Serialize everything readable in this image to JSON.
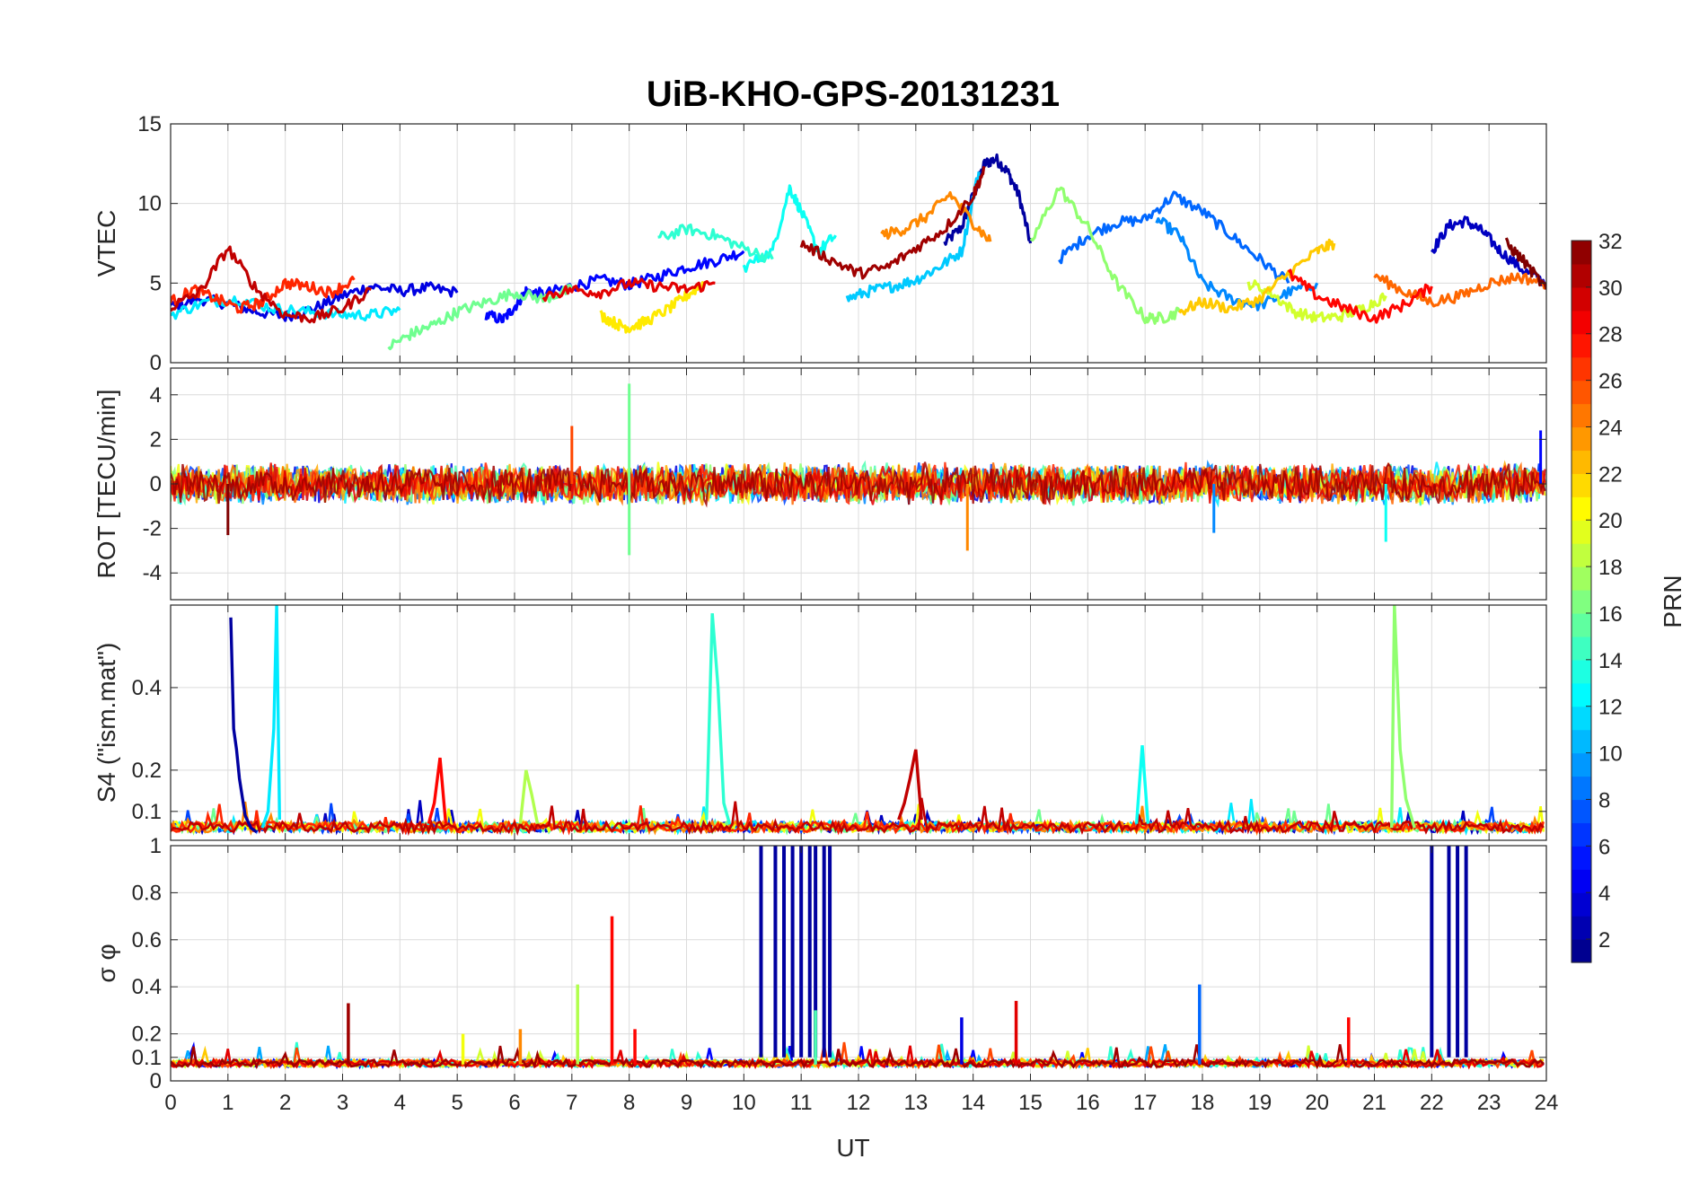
{
  "chart_data": {
    "type": "line",
    "title": "UiB-KHO-GPS-20131231",
    "xlabel": "UT",
    "xlim": [
      0,
      24
    ],
    "xticks": [
      0,
      1,
      2,
      3,
      4,
      5,
      6,
      7,
      8,
      9,
      10,
      11,
      12,
      13,
      14,
      15,
      16,
      17,
      18,
      19,
      20,
      21,
      22,
      23,
      24
    ],
    "colorbar": {
      "label": "PRN",
      "range": [
        1,
        32
      ],
      "ticks": [
        2,
        4,
        6,
        8,
        10,
        12,
        14,
        16,
        18,
        20,
        22,
        24,
        26,
        28,
        30,
        32
      ],
      "colormap": "jet"
    },
    "panels": [
      {
        "ylabel": "VTEC",
        "ylim": [
          0,
          15
        ],
        "yticks": [
          0,
          5,
          10,
          15
        ],
        "series": [
          {
            "prn": 2,
            "x": [
              13.5,
              13.8,
              14.0,
              14.2,
              14.4,
              14.6,
              14.8,
              15.0
            ],
            "y": [
              7.5,
              8.5,
              10.5,
              12.5,
              12.8,
              12.0,
              10.5,
              7.5
            ]
          },
          {
            "prn": 4,
            "x": [
              0,
              0.5,
              1.0,
              1.5,
              2.0,
              2.5,
              3.0,
              3.5,
              4.0,
              4.5,
              5.0
            ],
            "y": [
              3.5,
              4.0,
              3.7,
              3.2,
              2.9,
              3.4,
              4.2,
              4.8,
              4.5,
              4.7,
              4.4
            ]
          },
          {
            "prn": 5,
            "x": [
              5.5,
              5.8,
              6.0,
              6.2,
              6.5,
              7.0,
              7.5,
              8.0,
              8.5,
              9.0,
              9.5,
              10.0
            ],
            "y": [
              3.0,
              2.7,
              3.5,
              4.5,
              4.3,
              4.8,
              5.2,
              4.9,
              5.4,
              6.0,
              6.4,
              7.0
            ]
          },
          {
            "prn": 3,
            "x": [
              22.0,
              22.3,
              22.6,
              22.9,
              23.2,
              23.6,
              24.0
            ],
            "y": [
              7.0,
              8.6,
              8.9,
              8.2,
              7.0,
              5.8,
              5.0
            ]
          },
          {
            "prn": 8,
            "x": [
              15.5,
              16.0,
              16.5,
              17.0,
              17.5,
              18.0,
              18.5,
              19.0,
              19.5
            ],
            "y": [
              6.5,
              8.0,
              8.8,
              9.0,
              10.5,
              9.5,
              8.0,
              6.5,
              5.0
            ]
          },
          {
            "prn": 9,
            "x": [
              17.2,
              17.6,
              18.0,
              18.5,
              19.0,
              19.5,
              20.0
            ],
            "y": [
              9.0,
              8.0,
              5.0,
              4.0,
              3.6,
              4.4,
              5.0
            ]
          },
          {
            "prn": 11,
            "x": [
              11.8,
              12.2,
              12.6,
              13.0,
              13.4,
              13.8,
              14.1
            ],
            "y": [
              4.0,
              4.5,
              4.8,
              5.2,
              6.0,
              7.0,
              12.0
            ]
          },
          {
            "prn": 12,
            "x": [
              0,
              0.6,
              1.2,
              1.8,
              2.4,
              3.0,
              3.5,
              4.0
            ],
            "y": [
              3.0,
              3.8,
              4.0,
              3.4,
              3.2,
              3.0,
              3.0,
              3.3
            ]
          },
          {
            "prn": 13,
            "x": [
              10.0,
              10.5,
              10.8,
              11.0,
              11.3,
              11.6
            ],
            "y": [
              6.0,
              7.0,
              11.0,
              9.5,
              7.0,
              8.0
            ]
          },
          {
            "prn": 14,
            "x": [
              8.5,
              9.0,
              9.5,
              10.0,
              10.5
            ],
            "y": [
              7.8,
              8.4,
              8.0,
              7.2,
              6.5
            ]
          },
          {
            "prn": 16,
            "x": [
              3.8,
              4.2,
              4.6,
              5.0,
              5.5,
              6.0,
              6.5,
              7.0
            ],
            "y": [
              1.0,
              1.8,
              2.4,
              3.2,
              3.8,
              4.4,
              4.0,
              4.6
            ]
          },
          {
            "prn": 17,
            "x": [
              15.0,
              15.5,
              16.0,
              16.5,
              17.0,
              17.3,
              17.6
            ],
            "y": [
              7.5,
              11.0,
              8.5,
              5.0,
              2.8,
              2.8,
              3.2
            ]
          },
          {
            "prn": 19,
            "x": [
              18.8,
              19.2,
              19.6,
              20.0,
              20.4,
              20.8,
              21.2
            ],
            "y": [
              5.0,
              4.4,
              3.2,
              2.8,
              2.9,
              3.4,
              4.2
            ]
          },
          {
            "prn": 21,
            "x": [
              7.5,
              7.8,
              8.0,
              8.3,
              8.7,
              9.0,
              9.3
            ],
            "y": [
              3.0,
              2.4,
              2.2,
              2.6,
              3.4,
              4.2,
              5.0
            ]
          },
          {
            "prn": 22,
            "x": [
              17.6,
              18.0,
              18.5,
              19.0,
              19.5,
              20.0,
              20.3
            ],
            "y": [
              3.2,
              3.8,
              3.4,
              4.0,
              5.6,
              7.0,
              7.5
            ]
          },
          {
            "prn": 24,
            "x": [
              12.4,
              12.8,
              13.2,
              13.6,
              14.0,
              14.3
            ],
            "y": [
              8.0,
              8.4,
              9.2,
              10.6,
              8.8,
              7.6
            ]
          },
          {
            "prn": 25,
            "x": [
              21.0,
              21.5,
              22.0,
              22.5,
              23.0,
              23.5,
              24.0
            ],
            "y": [
              5.5,
              4.5,
              3.8,
              4.2,
              5.0,
              5.4,
              5.0
            ]
          },
          {
            "prn": 27,
            "x": [
              0,
              0.4,
              0.8,
              1.2,
              1.6,
              2.0,
              2.4,
              2.8,
              3.2
            ],
            "y": [
              3.8,
              4.6,
              4.0,
              3.4,
              3.8,
              5.0,
              4.8,
              4.4,
              5.2
            ]
          },
          {
            "prn": 28,
            "x": [
              19.5,
              20.0,
              20.5,
              21.0,
              21.5,
              22.0
            ],
            "y": [
              5.6,
              4.2,
              3.4,
              2.8,
              3.6,
              4.8
            ]
          },
          {
            "prn": 29,
            "x": [
              6.5,
              7.0,
              7.5,
              8.0,
              8.5,
              9.0,
              9.5
            ],
            "y": [
              4.2,
              4.6,
              4.4,
              5.0,
              4.8,
              4.6,
              5.0
            ]
          },
          {
            "prn": 30,
            "x": [
              0,
              0.5,
              1.0,
              1.5,
              2.0,
              2.5,
              3.0,
              3.5
            ],
            "y": [
              3.5,
              4.4,
              7.2,
              4.6,
              3.0,
              2.8,
              3.4,
              4.6
            ]
          },
          {
            "prn": 31,
            "x": [
              11.0,
              11.5,
              12.0,
              12.5,
              13.0,
              13.5,
              14.0,
              14.2
            ],
            "y": [
              7.5,
              6.5,
              5.6,
              6.0,
              7.2,
              8.4,
              10.5,
              12.2
            ]
          },
          {
            "prn": 32,
            "x": [
              23.3,
              23.6,
              24.0
            ],
            "y": [
              7.5,
              6.4,
              4.6
            ]
          }
        ]
      },
      {
        "ylabel": "ROT [TECU/min]",
        "ylim": [
          -5.2,
          5.2
        ],
        "yticks": [
          -4,
          -2,
          0,
          2,
          4
        ],
        "noise_band": [
          -0.9,
          0.9
        ],
        "spikes": [
          {
            "x": 8.0,
            "y": 4.5,
            "prn": 16
          },
          {
            "x": 8.0,
            "y": -3.2,
            "prn": 16
          },
          {
            "x": 13.9,
            "y": -3.0,
            "prn": 24
          },
          {
            "x": 21.2,
            "y": -2.6,
            "prn": 13
          },
          {
            "x": 1.0,
            "y": -2.3,
            "prn": 32
          },
          {
            "x": 7.0,
            "y": 2.6,
            "prn": 26
          },
          {
            "x": 18.2,
            "y": -2.2,
            "prn": 9
          },
          {
            "x": 23.9,
            "y": 2.4,
            "prn": 5
          }
        ]
      },
      {
        "ylabel": "S4 (\"ism.mat\")",
        "ylim": [
          0.03,
          0.6
        ],
        "yticks": [
          0.1,
          0.2,
          0.4
        ],
        "series": [
          {
            "prn": 2,
            "x": [
              1.05,
              1.1,
              1.15,
              1.2,
              1.3,
              1.4,
              1.5
            ],
            "y": [
              0.57,
              0.3,
              0.25,
              0.18,
              0.09,
              0.06,
              0.05
            ]
          },
          {
            "prn": 12,
            "x": [
              1.6,
              1.7,
              1.8,
              1.85,
              1.9
            ],
            "y": [
              0.06,
              0.1,
              0.3,
              0.6,
              0.08
            ]
          },
          {
            "prn": 14,
            "x": [
              9.35,
              9.45,
              9.55,
              9.65,
              9.75
            ],
            "y": [
              0.08,
              0.58,
              0.4,
              0.12,
              0.07
            ]
          },
          {
            "prn": 17,
            "x": [
              21.3,
              21.35,
              21.45,
              21.55,
              21.7
            ],
            "y": [
              0.06,
              0.6,
              0.25,
              0.13,
              0.06
            ]
          },
          {
            "prn": 13,
            "x": [
              16.85,
              16.95,
              17.05
            ],
            "y": [
              0.07,
              0.26,
              0.07
            ]
          },
          {
            "prn": 30,
            "x": [
              12.7,
              12.8,
              12.9,
              13.0,
              13.1
            ],
            "y": [
              0.08,
              0.12,
              0.18,
              0.25,
              0.08
            ]
          },
          {
            "prn": 28,
            "x": [
              4.5,
              4.6,
              4.7,
              4.8
            ],
            "y": [
              0.07,
              0.12,
              0.23,
              0.07
            ]
          },
          {
            "prn": 18,
            "x": [
              6.1,
              6.2,
              6.3,
              6.4
            ],
            "y": [
              0.07,
              0.2,
              0.14,
              0.07
            ]
          }
        ]
      },
      {
        "ylabel": "σ φ",
        "ylim": [
          0,
          1
        ],
        "yticks": [
          0,
          0.1,
          0.2,
          0.4,
          0.6,
          0.8,
          1
        ],
        "bursts": [
          {
            "prn": 2,
            "x": [
              10.3,
              10.55,
              10.7,
              10.85,
              11.0,
              11.15,
              11.25,
              11.4,
              11.5
            ]
          },
          {
            "prn": 2,
            "x": [
              22.0,
              22.3,
              22.45,
              22.6
            ]
          }
        ],
        "spikes": [
          {
            "x": 7.7,
            "y": 0.7,
            "prn": 28
          },
          {
            "x": 7.1,
            "y": 0.41,
            "prn": 18
          },
          {
            "x": 17.95,
            "y": 0.41,
            "prn": 8
          },
          {
            "x": 3.1,
            "y": 0.33,
            "prn": 31
          },
          {
            "x": 14.75,
            "y": 0.34,
            "prn": 29
          },
          {
            "x": 11.25,
            "y": 0.3,
            "prn": 15
          },
          {
            "x": 20.55,
            "y": 0.27,
            "prn": 28
          },
          {
            "x": 13.8,
            "y": 0.27,
            "prn": 4
          },
          {
            "x": 8.1,
            "y": 0.22,
            "prn": 28
          },
          {
            "x": 6.1,
            "y": 0.22,
            "prn": 24
          },
          {
            "x": 5.1,
            "y": 0.2,
            "prn": 20
          }
        ]
      }
    ]
  }
}
